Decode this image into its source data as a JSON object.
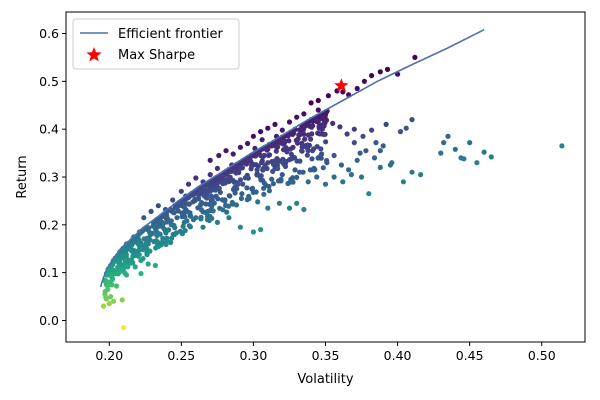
{
  "chart_data": {
    "type": "scatter",
    "title": "",
    "xlabel": "Volatility",
    "ylabel": "Return",
    "xlim": [
      0.17,
      0.53
    ],
    "ylim": [
      -0.045,
      0.645
    ],
    "xticks": [
      0.2,
      0.25,
      0.3,
      0.35,
      0.4,
      0.45,
      0.5
    ],
    "xtick_labels": [
      "0.20",
      "0.25",
      "0.30",
      "0.35",
      "0.40",
      "0.45",
      "0.50"
    ],
    "yticks": [
      0.0,
      0.1,
      0.2,
      0.3,
      0.4,
      0.5,
      0.6
    ],
    "ytick_labels": [
      "0.0",
      "0.1",
      "0.2",
      "0.3",
      "0.4",
      "0.5",
      "0.6"
    ],
    "grid": false,
    "legend_position": "top-left",
    "colormap": "viridis (dark purple = high Sharpe, yellow = low Sharpe)",
    "colors": {
      "frontier": "#4c72b0",
      "max_sharpe": "#ff0000",
      "viridis": [
        "#440154",
        "#472d7b",
        "#3b528b",
        "#2c728e",
        "#21918c",
        "#28ae80",
        "#5ec962",
        "#addc30",
        "#fde725"
      ]
    },
    "series": [
      {
        "name": "Efficient frontier",
        "kind": "line",
        "x": [
          0.194,
          0.196,
          0.199,
          0.203,
          0.208,
          0.215,
          0.224,
          0.235,
          0.248,
          0.262,
          0.278,
          0.296,
          0.316,
          0.338,
          0.362,
          0.386,
          0.41,
          0.435,
          0.46
        ],
        "y": [
          0.07,
          0.09,
          0.11,
          0.13,
          0.15,
          0.17,
          0.195,
          0.22,
          0.25,
          0.28,
          0.31,
          0.345,
          0.38,
          0.42,
          0.46,
          0.5,
          0.535,
          0.57,
          0.608
        ]
      },
      {
        "name": "Max Sharpe",
        "kind": "marker",
        "x": [
          0.361
        ],
        "y": [
          0.491
        ]
      }
    ],
    "portfolios": [
      [
        0.196,
        0.03
      ],
      [
        0.198,
        0.045
      ],
      [
        0.197,
        0.055
      ],
      [
        0.2,
        0.035
      ],
      [
        0.201,
        0.05
      ],
      [
        0.199,
        0.065
      ],
      [
        0.203,
        0.04
      ],
      [
        0.198,
        0.075
      ],
      [
        0.202,
        0.085
      ],
      [
        0.205,
        0.072
      ],
      [
        0.209,
        0.043
      ],
      [
        0.21,
        -0.015
      ],
      [
        0.2,
        0.095
      ],
      [
        0.203,
        0.105
      ],
      [
        0.206,
        0.1
      ],
      [
        0.207,
        0.118
      ],
      [
        0.21,
        0.108
      ],
      [
        0.212,
        0.095
      ],
      [
        0.215,
        0.12
      ],
      [
        0.218,
        0.112
      ],
      [
        0.222,
        0.098
      ],
      [
        0.227,
        0.118
      ],
      [
        0.232,
        0.115
      ],
      [
        0.205,
        0.128
      ],
      [
        0.209,
        0.138
      ],
      [
        0.214,
        0.15
      ],
      [
        0.218,
        0.14
      ],
      [
        0.222,
        0.162
      ],
      [
        0.226,
        0.15
      ],
      [
        0.231,
        0.165
      ],
      [
        0.236,
        0.158
      ],
      [
        0.24,
        0.172
      ],
      [
        0.212,
        0.16
      ],
      [
        0.217,
        0.175
      ],
      [
        0.221,
        0.185
      ],
      [
        0.226,
        0.195
      ],
      [
        0.23,
        0.182
      ],
      [
        0.235,
        0.205
      ],
      [
        0.238,
        0.192
      ],
      [
        0.243,
        0.2
      ],
      [
        0.247,
        0.215
      ],
      [
        0.252,
        0.205
      ],
      [
        0.256,
        0.225
      ],
      [
        0.26,
        0.215
      ],
      [
        0.265,
        0.195
      ],
      [
        0.27,
        0.23
      ],
      [
        0.275,
        0.205
      ],
      [
        0.283,
        0.215
      ],
      [
        0.291,
        0.195
      ],
      [
        0.3,
        0.185
      ],
      [
        0.305,
        0.19
      ],
      [
        0.224,
        0.215
      ],
      [
        0.229,
        0.228
      ],
      [
        0.234,
        0.24
      ],
      [
        0.239,
        0.232
      ],
      [
        0.244,
        0.252
      ],
      [
        0.248,
        0.24
      ],
      [
        0.253,
        0.26
      ],
      [
        0.258,
        0.248
      ],
      [
        0.262,
        0.272
      ],
      [
        0.267,
        0.258
      ],
      [
        0.272,
        0.282
      ],
      [
        0.277,
        0.268
      ],
      [
        0.282,
        0.29
      ],
      [
        0.287,
        0.278
      ],
      [
        0.292,
        0.265
      ],
      [
        0.297,
        0.255
      ],
      [
        0.303,
        0.248
      ],
      [
        0.31,
        0.235
      ],
      [
        0.318,
        0.245
      ],
      [
        0.325,
        0.235
      ],
      [
        0.33,
        0.245
      ],
      [
        0.335,
        0.232
      ],
      [
        0.25,
        0.27
      ],
      [
        0.255,
        0.285
      ],
      [
        0.26,
        0.298
      ],
      [
        0.265,
        0.29
      ],
      [
        0.27,
        0.305
      ],
      [
        0.275,
        0.318
      ],
      [
        0.28,
        0.31
      ],
      [
        0.285,
        0.325
      ],
      [
        0.29,
        0.315
      ],
      [
        0.295,
        0.335
      ],
      [
        0.3,
        0.325
      ],
      [
        0.305,
        0.345
      ],
      [
        0.31,
        0.33
      ],
      [
        0.315,
        0.318
      ],
      [
        0.32,
        0.305
      ],
      [
        0.326,
        0.295
      ],
      [
        0.332,
        0.31
      ],
      [
        0.338,
        0.29
      ],
      [
        0.344,
        0.3
      ],
      [
        0.35,
        0.285
      ],
      [
        0.356,
        0.3
      ],
      [
        0.362,
        0.29
      ],
      [
        0.368,
        0.305
      ],
      [
        0.375,
        0.3
      ],
      [
        0.38,
        0.265
      ],
      [
        0.388,
        0.32
      ],
      [
        0.395,
        0.325
      ],
      [
        0.27,
        0.335
      ],
      [
        0.276,
        0.345
      ],
      [
        0.281,
        0.355
      ],
      [
        0.286,
        0.348
      ],
      [
        0.291,
        0.362
      ],
      [
        0.296,
        0.37
      ],
      [
        0.301,
        0.36
      ],
      [
        0.306,
        0.378
      ],
      [
        0.311,
        0.368
      ],
      [
        0.316,
        0.385
      ],
      [
        0.321,
        0.375
      ],
      [
        0.326,
        0.392
      ],
      [
        0.331,
        0.38
      ],
      [
        0.336,
        0.365
      ],
      [
        0.341,
        0.355
      ],
      [
        0.346,
        0.34
      ],
      [
        0.351,
        0.33
      ],
      [
        0.356,
        0.345
      ],
      [
        0.361,
        0.325
      ],
      [
        0.366,
        0.315
      ],
      [
        0.372,
        0.335
      ],
      [
        0.378,
        0.355
      ],
      [
        0.384,
        0.34
      ],
      [
        0.39,
        0.365
      ],
      [
        0.396,
        0.33
      ],
      [
        0.404,
        0.29
      ],
      [
        0.41,
        0.31
      ],
      [
        0.416,
        0.305
      ],
      [
        0.3,
        0.385
      ],
      [
        0.305,
        0.395
      ],
      [
        0.31,
        0.402
      ],
      [
        0.315,
        0.41
      ],
      [
        0.32,
        0.398
      ],
      [
        0.325,
        0.415
      ],
      [
        0.33,
        0.425
      ],
      [
        0.335,
        0.432
      ],
      [
        0.34,
        0.42
      ],
      [
        0.345,
        0.44
      ],
      [
        0.35,
        0.43
      ],
      [
        0.355,
        0.412
      ],
      [
        0.36,
        0.405
      ],
      [
        0.365,
        0.39
      ],
      [
        0.37,
        0.4
      ],
      [
        0.376,
        0.385
      ],
      [
        0.382,
        0.398
      ],
      [
        0.392,
        0.41
      ],
      [
        0.402,
        0.395
      ],
      [
        0.406,
        0.402
      ],
      [
        0.41,
        0.42
      ],
      [
        0.34,
        0.455
      ],
      [
        0.345,
        0.46
      ],
      [
        0.352,
        0.47
      ],
      [
        0.358,
        0.48
      ],
      [
        0.362,
        0.478
      ],
      [
        0.366,
        0.472
      ],
      [
        0.372,
        0.485
      ],
      [
        0.377,
        0.5
      ],
      [
        0.382,
        0.512
      ],
      [
        0.388,
        0.52
      ],
      [
        0.393,
        0.525
      ],
      [
        0.4,
        0.515
      ],
      [
        0.412,
        0.55
      ],
      [
        0.435,
        0.385
      ],
      [
        0.432,
        0.372
      ],
      [
        0.44,
        0.358
      ],
      [
        0.444,
        0.34
      ],
      [
        0.446,
        0.338
      ],
      [
        0.45,
        0.372
      ],
      [
        0.455,
        0.33
      ],
      [
        0.46,
        0.352
      ],
      [
        0.465,
        0.342
      ],
      [
        0.43,
        0.35
      ],
      [
        0.514,
        0.365
      ],
      [
        0.37,
        0.372
      ],
      [
        0.385,
        0.372
      ],
      [
        0.388,
        0.355
      ],
      [
        0.374,
        0.35
      ]
    ]
  }
}
